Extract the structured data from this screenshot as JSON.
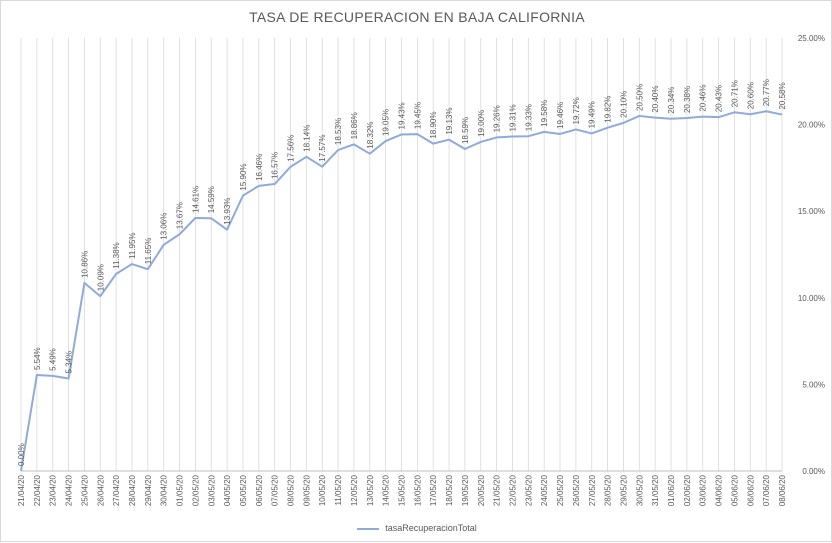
{
  "chart_data": {
    "type": "line",
    "title": "TASA DE RECUPERACION EN BAJA CALIFORNIA",
    "xlabel": "",
    "ylabel": "",
    "ylim": [
      0,
      25
    ],
    "y_ticks": [
      "0.00%",
      "5.00%",
      "10.00%",
      "15.00%",
      "20.00%",
      "25.00%"
    ],
    "y_axis_side": "right",
    "grid": "vertical",
    "legend_position": "bottom",
    "line_color": "#8faadc",
    "categories": [
      "21/04/20",
      "22/04/20",
      "23/04/20",
      "24/04/20",
      "25/04/20",
      "26/04/20",
      "27/04/20",
      "28/04/20",
      "29/04/20",
      "30/04/20",
      "01/05/20",
      "02/05/20",
      "03/05/20",
      "04/05/20",
      "05/05/20",
      "06/05/20",
      "07/05/20",
      "08/05/20",
      "09/05/20",
      "10/05/20",
      "11/05/20",
      "12/05/20",
      "13/05/20",
      "14/05/20",
      "15/05/20",
      "16/05/20",
      "17/05/20",
      "18/05/20",
      "19/05/20",
      "20/05/20",
      "21/05/20",
      "22/05/20",
      "23/05/20",
      "24/05/20",
      "25/05/20",
      "26/05/20",
      "27/05/20",
      "28/05/20",
      "29/05/20",
      "30/05/20",
      "31/05/20",
      "01/06/20",
      "02/06/20",
      "03/06/20",
      "04/06/20",
      "05/06/20",
      "06/06/20",
      "07/06/20",
      "08/06/20"
    ],
    "series": [
      {
        "name": "tasaRecuperacionTotal",
        "values": [
          0.0,
          5.54,
          5.49,
          5.34,
          10.86,
          10.09,
          11.38,
          11.95,
          11.65,
          13.06,
          13.67,
          14.61,
          14.59,
          13.93,
          15.9,
          16.46,
          16.57,
          17.56,
          18.14,
          17.57,
          18.53,
          18.86,
          18.32,
          19.05,
          19.43,
          19.45,
          18.9,
          19.13,
          18.59,
          19.0,
          19.26,
          19.31,
          19.33,
          19.58,
          19.46,
          19.72,
          19.49,
          19.82,
          20.1,
          20.5,
          20.4,
          20.34,
          20.38,
          20.46,
          20.43,
          20.71,
          20.6,
          20.77,
          20.58
        ],
        "labels": [
          "0.00%",
          "5.54%",
          "5.49%",
          "5.34%",
          "10.86%",
          "10.09%",
          "11.38%",
          "11.95%",
          "11.65%",
          "13.06%",
          "13.67%",
          "14.61%",
          "14.59%",
          "13.93%",
          "15.90%",
          "16.46%",
          "16.57%",
          "17.56%",
          "18.14%",
          "17.57%",
          "18.53%",
          "18.86%",
          "18.32%",
          "19.05%",
          "19.43%",
          "19.45%",
          "18.90%",
          "19.13%",
          "18.59%",
          "19.00%",
          "19.26%",
          "19.31%",
          "19.33%",
          "19.58%",
          "19.46%",
          "19.72%",
          "19.49%",
          "19.82%",
          "20.10%",
          "20.50%",
          "20.40%",
          "20.34%",
          "20.38%",
          "20.46%",
          "20.43%",
          "20.71%",
          "20.60%",
          "20.77%",
          "20.58%"
        ]
      }
    ]
  }
}
